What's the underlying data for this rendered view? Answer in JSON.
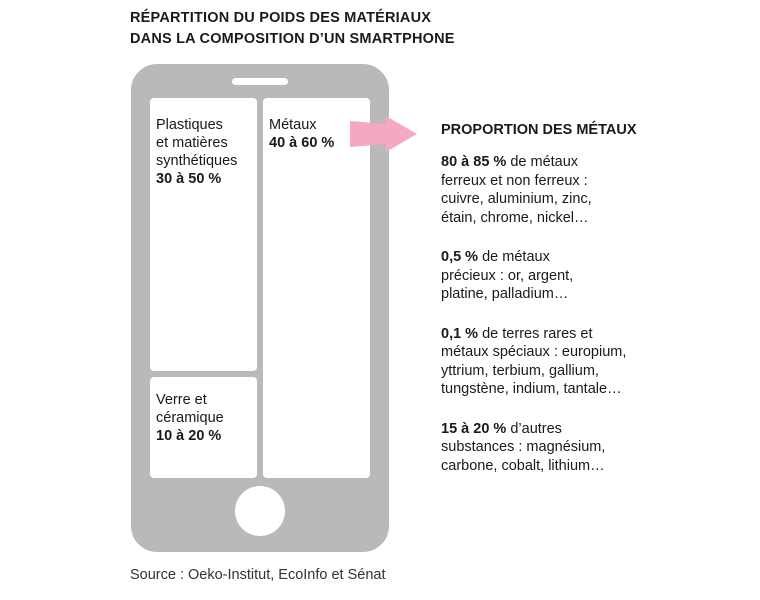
{
  "title": {
    "line1": "RÉPARTITION DU POIDS DES MATÉRIAUX",
    "line2": "DANS LA COMPOSITION D’UN SMARTPHONE"
  },
  "phone": {
    "color": "#b9b9b9",
    "panels": {
      "plastics": {
        "name": "Plastiques\net matières\nsynthétiques",
        "value": "30 à 50 %"
      },
      "metals": {
        "name": "Métaux",
        "value": "40 à 60 %"
      },
      "glass": {
        "name": "Verre et\ncéramique",
        "value": "10 à 20 %"
      }
    }
  },
  "arrow": {
    "color": "#f4a8c2"
  },
  "metals_breakdown": {
    "heading": "PROPORTION DES MÉTAUX",
    "items": [
      {
        "value": "80 à 85 %",
        "text": " de métaux\nferreux et non ferreux :\ncuivre, aluminium, zinc,\nétain, chrome, nickel…"
      },
      {
        "value": "0,5 %",
        "text": " de métaux\nprécieux : or, argent,\nplatine, palladium…"
      },
      {
        "value": "0,1 %",
        "text": " de terres rares et\nmétaux spéciaux : europium,\nyttrium, terbium, gallium,\ntungstène, indium, tantale…"
      },
      {
        "value": "15 à 20 %",
        "text": " d’autres\nsubstances : magnésium,\ncarbone, cobalt, lithium…"
      }
    ]
  },
  "source": "Source : Oeko-Institut, EcoInfo et Sénat"
}
